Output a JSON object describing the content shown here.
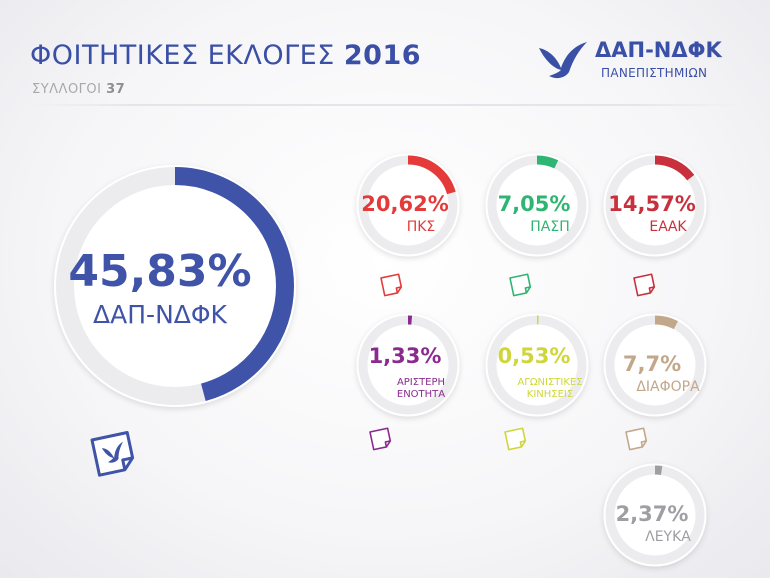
{
  "header": {
    "title": "ΦΟΙΤΗΤΙΚΕΣ ΕΚΛΟΓΕΣ",
    "year": "2016",
    "subtitle_label": "ΣΥΛΛΟΓΟΙ",
    "subtitle_value": "37"
  },
  "logo": {
    "name": "ΔΑΠ-ΝΔΦΚ",
    "subtitle": "ΠΑΝΕΠΙΣΤΗΜΙΩΝ",
    "icon": "dove-icon"
  },
  "chart_data": {
    "type": "pie",
    "style": "donut-per-party",
    "unit": "%",
    "series": [
      {
        "name": "ΔΑΠ-ΝΔΦΚ",
        "value": 45.83,
        "label": "45,83%",
        "color": "#3f54a8",
        "lines": [
          "ΔΑΠ-ΝΔΦΚ"
        ]
      },
      {
        "name": "ΠΚΣ",
        "value": 20.62,
        "label": "20,62%",
        "color": "#e43a3a",
        "lines": [
          "ΠΚΣ"
        ]
      },
      {
        "name": "ΠΑΣΠ",
        "value": 7.05,
        "label": "7,05%",
        "color": "#2fb573",
        "lines": [
          "ΠΑΣΠ"
        ]
      },
      {
        "name": "ΕΑΑΚ",
        "value": 14.57,
        "label": "14,57%",
        "color": "#c8303d",
        "lines": [
          "ΕΑΑΚ"
        ]
      },
      {
        "name": "ΑΡΙΣΤΕΡΗ ΕΝΟΤΗΤΑ",
        "value": 1.33,
        "label": "1,33%",
        "color": "#8a2a8f",
        "lines": [
          "ΑΡΙΣΤΕΡΗ",
          "ΕΝΟΤΗΤΑ"
        ]
      },
      {
        "name": "ΑΓΩΝΙΣΤΙΚΕΣ ΚΙΝΗΣΕΙΣ",
        "value": 0.53,
        "label": "0,53%",
        "color": "#cfd63a",
        "lines": [
          "ΑΓΩΝΙΣΤΙΚΕΣ",
          "ΚΙΝΗΣΕΙΣ"
        ]
      },
      {
        "name": "ΔΙΑΦΟΡΑ",
        "value": 7.7,
        "label": "7,7%",
        "color": "#c2a78b",
        "lines": [
          "ΔΙΑΦΟΡΑ"
        ]
      },
      {
        "name": "ΛΕΥΚΑ",
        "value": 2.37,
        "label": "2,37%",
        "color": "#9e9ea3",
        "lines": [
          "ΛΕΥΚΑ"
        ]
      }
    ]
  }
}
